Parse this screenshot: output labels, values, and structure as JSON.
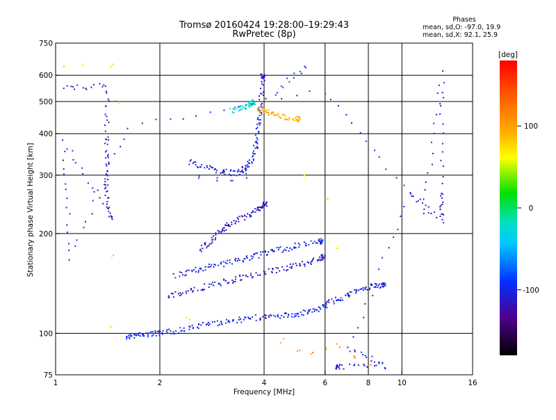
{
  "chart_data": {
    "type": "scatter",
    "title": "Tromsø 20160424 19:28:00–19:29:43",
    "subtitle": "RwPretec (8p)",
    "xlabel": "Frequency [MHz]",
    "ylabel": "Stationary phase Virtual Height [km]",
    "x_scale": "log",
    "y_scale": "log",
    "xlim": [
      1,
      16
    ],
    "ylim": [
      75,
      750
    ],
    "x_ticks": [
      1,
      2,
      4,
      6,
      8,
      10,
      16
    ],
    "y_ticks": [
      75,
      100,
      200,
      300,
      400,
      500,
      600,
      750
    ],
    "x_gridlines": [
      2,
      4,
      6,
      8,
      10
    ],
    "y_gridlines": [
      100,
      200,
      300,
      400,
      500,
      600
    ],
    "grid": true,
    "phases_box": {
      "heading": "Phases",
      "line_o": "mean, sd,O: -97.0, 19.9",
      "line_x": "mean, sd,X:  92.1, 25.9"
    },
    "colorbar": {
      "label": "[deg]",
      "range": [
        -180,
        180
      ],
      "ticks": [
        100,
        0,
        -100
      ],
      "colormap": "rainbow",
      "placement": "right"
    },
    "traces": [
      {
        "name": "",
        "phase": -100,
        "points": [
          [
            1.6,
            98
          ],
          [
            1.7,
            99
          ],
          [
            1.85,
            100
          ],
          [
            2.0,
            100.5
          ],
          [
            2.2,
            102
          ],
          [
            2.5,
            105
          ],
          [
            2.9,
            108
          ],
          [
            3.3,
            110
          ],
          [
            3.8,
            112
          ],
          [
            4.3,
            113
          ],
          [
            4.8,
            114
          ],
          [
            5.3,
            116
          ],
          [
            5.8,
            120
          ],
          [
            6.2,
            125
          ],
          [
            6.8,
            130
          ],
          [
            7.5,
            135
          ],
          [
            8.2,
            140
          ],
          [
            8.8,
            140
          ]
        ]
      },
      {
        "name": "",
        "phase": -110,
        "points": [
          [
            2.1,
            130
          ],
          [
            2.4,
            135
          ],
          [
            2.8,
            140
          ],
          [
            3.2,
            145
          ],
          [
            3.6,
            150
          ],
          [
            4.2,
            155
          ],
          [
            4.8,
            160
          ],
          [
            5.4,
            165
          ],
          [
            5.9,
            170
          ]
        ]
      },
      {
        "name": "",
        "phase": -100,
        "points": [
          [
            2.2,
            150
          ],
          [
            2.5,
            155
          ],
          [
            2.8,
            160
          ],
          [
            3.2,
            165
          ],
          [
            3.6,
            170
          ],
          [
            4.0,
            175
          ],
          [
            4.5,
            180
          ],
          [
            5.0,
            185
          ],
          [
            5.8,
            190
          ]
        ]
      },
      {
        "name": "",
        "phase": -115,
        "points": [
          [
            2.6,
            180
          ],
          [
            2.8,
            190
          ],
          [
            3.0,
            205
          ],
          [
            3.2,
            215
          ],
          [
            3.5,
            225
          ],
          [
            3.8,
            235
          ],
          [
            4.0,
            245
          ]
        ]
      },
      {
        "name": "",
        "phase": -105,
        "points": [
          [
            2.4,
            330
          ],
          [
            2.7,
            320
          ],
          [
            3.0,
            310
          ],
          [
            3.3,
            305
          ],
          [
            3.5,
            315
          ],
          [
            3.7,
            340
          ],
          [
            3.8,
            380
          ],
          [
            3.85,
            440
          ],
          [
            3.9,
            500
          ],
          [
            3.95,
            600
          ]
        ]
      },
      {
        "name": "",
        "phase": -100,
        "points": [
          [
            2.6,
            300
          ],
          [
            2.9,
            295
          ],
          [
            3.2,
            290
          ],
          [
            3.5,
            300
          ],
          [
            3.6,
            320
          ]
        ]
      },
      {
        "name": "",
        "phase": -90,
        "points": [
          [
            4.3,
            530
          ],
          [
            4.5,
            560
          ],
          [
            4.7,
            580
          ],
          [
            4.9,
            600
          ],
          [
            5.1,
            620
          ],
          [
            5.2,
            640
          ]
        ]
      },
      {
        "name": "",
        "phase": 100,
        "points": [
          [
            3.8,
            480
          ],
          [
            4.0,
            470
          ],
          [
            4.2,
            460
          ],
          [
            4.6,
            450
          ],
          [
            5.0,
            445
          ]
        ]
      },
      {
        "name": "",
        "phase": -30,
        "points": [
          [
            3.2,
            470
          ],
          [
            3.4,
            480
          ],
          [
            3.6,
            490
          ],
          [
            3.7,
            500
          ]
        ]
      },
      {
        "name": "",
        "phase": 120,
        "points": [
          [
            4.5,
            95
          ],
          [
            5.0,
            90
          ],
          [
            5.5,
            88
          ],
          [
            6.0,
            90
          ],
          [
            6.5,
            92
          ],
          [
            7.2,
            85
          ],
          [
            8.0,
            80
          ]
        ]
      },
      {
        "name": "",
        "phase": 60,
        "points": [
          [
            1.05,
            640
          ],
          [
            1.2,
            650
          ],
          [
            1.45,
            650
          ],
          [
            1.5,
            500
          ],
          [
            1.45,
            170
          ],
          [
            1.45,
            105
          ],
          [
            6.0,
            260
          ],
          [
            6.5,
            180
          ],
          [
            5.2,
            300
          ],
          [
            2.4,
            110
          ]
        ]
      },
      {
        "name": "",
        "phase": -110,
        "points": [
          [
            1.05,
            550
          ],
          [
            1.4,
            560
          ],
          [
            1.4,
            390
          ],
          [
            1.4,
            320
          ],
          [
            1.4,
            260
          ],
          [
            1.45,
            220
          ],
          [
            1.05,
            380
          ],
          [
            1.1,
            170
          ],
          [
            1.6,
            420
          ],
          [
            5.9,
            540
          ],
          [
            11.5,
            235
          ],
          [
            13.0,
            610
          ],
          [
            13.0,
            265
          ],
          [
            13.0,
            220
          ],
          [
            10.5,
            265
          ],
          [
            7.0,
            90
          ],
          [
            9.0,
            80
          ],
          [
            6.5,
            80
          ]
        ]
      }
    ]
  }
}
